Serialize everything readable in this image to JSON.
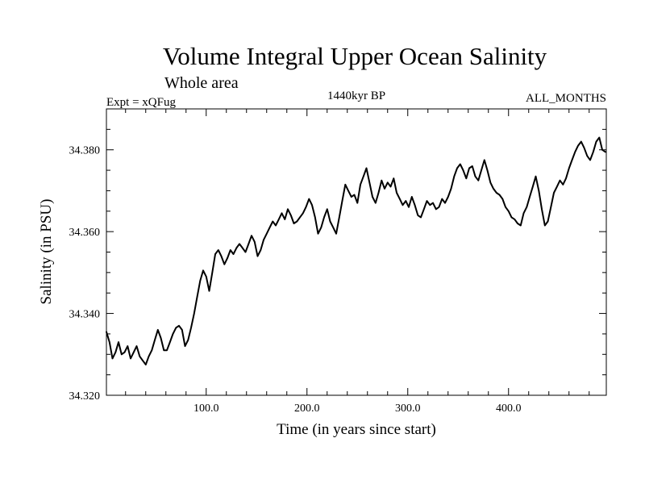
{
  "chart_data": {
    "type": "line",
    "title": "Volume Integral Upper Ocean Salinity",
    "subtitle": "Whole area",
    "annotations": {
      "left": "Expt = xQFug",
      "center": "1440kyr BP",
      "right": "ALL_MONTHS"
    },
    "xlabel": "Time (in years since start)",
    "ylabel": "Salinity (in PSU)",
    "xlim": [
      1,
      497
    ],
    "ylim": [
      34.32,
      34.39
    ],
    "x_ticks": [
      100,
      200,
      300,
      400
    ],
    "x_tick_labels": [
      "100.0",
      "200.0",
      "300.0",
      "400.0"
    ],
    "y_ticks": [
      34.32,
      34.34,
      34.36,
      34.38
    ],
    "y_tick_labels": [
      "34.320",
      "34.340",
      "34.360",
      "34.380"
    ],
    "grid": false,
    "series": [
      {
        "name": "Salinity",
        "color": "#000000",
        "x": [
          1,
          4,
          7,
          10,
          13,
          16,
          19,
          22,
          25,
          28,
          31,
          34,
          37,
          40,
          43,
          46,
          49,
          52,
          55,
          58,
          61,
          64,
          67,
          70,
          73,
          76,
          79,
          82,
          85,
          88,
          91,
          94,
          97,
          100,
          103,
          106,
          109,
          112,
          115,
          118,
          121,
          124,
          127,
          130,
          133,
          136,
          139,
          142,
          145,
          148,
          151,
          154,
          157,
          160,
          163,
          166,
          169,
          172,
          175,
          178,
          181,
          184,
          187,
          190,
          193,
          196,
          199,
          202,
          205,
          208,
          211,
          214,
          217,
          220,
          223,
          226,
          229,
          232,
          235,
          238,
          241,
          244,
          247,
          250,
          253,
          256,
          259,
          262,
          265,
          268,
          271,
          274,
          277,
          280,
          283,
          286,
          289,
          292,
          295,
          298,
          301,
          304,
          307,
          310,
          313,
          316,
          319,
          322,
          325,
          328,
          331,
          334,
          337,
          340,
          343,
          346,
          349,
          352,
          355,
          358,
          361,
          364,
          367,
          370,
          373,
          376,
          379,
          382,
          385,
          388,
          391,
          394,
          397,
          400,
          403,
          406,
          409,
          412,
          415,
          418,
          421,
          424,
          427,
          430,
          433,
          436,
          439,
          442,
          445,
          448,
          451,
          454,
          457,
          460,
          463,
          466,
          469,
          472,
          475,
          478,
          481,
          484,
          487,
          490,
          493,
          496
        ],
        "values": [
          34.3355,
          34.333,
          34.329,
          34.3305,
          34.333,
          34.33,
          34.3305,
          34.332,
          34.329,
          34.3305,
          34.332,
          34.3295,
          34.3285,
          34.3275,
          34.3295,
          34.331,
          34.3335,
          34.336,
          34.334,
          34.331,
          34.331,
          34.333,
          34.335,
          34.3365,
          34.337,
          34.336,
          34.332,
          34.3335,
          34.3365,
          34.34,
          34.344,
          34.348,
          34.3505,
          34.349,
          34.3455,
          34.35,
          34.3545,
          34.3555,
          34.354,
          34.352,
          34.3535,
          34.3555,
          34.3545,
          34.356,
          34.357,
          34.356,
          34.355,
          34.357,
          34.359,
          34.3575,
          34.354,
          34.3555,
          34.358,
          34.3595,
          34.361,
          34.3625,
          34.3615,
          34.363,
          34.3645,
          34.363,
          34.3655,
          34.364,
          34.362,
          34.3625,
          34.3635,
          34.3645,
          34.366,
          34.368,
          34.3665,
          34.3635,
          34.3595,
          34.361,
          34.3635,
          34.3655,
          34.3625,
          34.361,
          34.3595,
          34.3635,
          34.3675,
          34.3715,
          34.37,
          34.3685,
          34.369,
          34.367,
          34.3715,
          34.3735,
          34.3755,
          34.372,
          34.3685,
          34.367,
          34.3695,
          34.3725,
          34.3705,
          34.372,
          34.371,
          34.373,
          34.3695,
          34.368,
          34.3665,
          34.3675,
          34.366,
          34.3685,
          34.3665,
          34.364,
          34.3635,
          34.3655,
          34.3675,
          34.3665,
          34.367,
          34.3655,
          34.366,
          34.368,
          34.367,
          34.3685,
          34.3705,
          34.3735,
          34.3755,
          34.3765,
          34.375,
          34.373,
          34.3755,
          34.376,
          34.3735,
          34.3725,
          34.375,
          34.3775,
          34.375,
          34.372,
          34.3705,
          34.3695,
          34.369,
          34.368,
          34.366,
          34.365,
          34.3635,
          34.363,
          34.362,
          34.3615,
          34.3645,
          34.366,
          34.3685,
          34.371,
          34.3735,
          34.37,
          34.3655,
          34.3615,
          34.3625,
          34.366,
          34.3695,
          34.371,
          34.3725,
          34.3715,
          34.373,
          34.3755,
          34.3775,
          34.3795,
          34.381,
          34.382,
          34.3805,
          34.3785,
          34.3775,
          34.3795,
          34.382,
          34.383,
          34.38,
          34.3795
        ]
      }
    ]
  }
}
